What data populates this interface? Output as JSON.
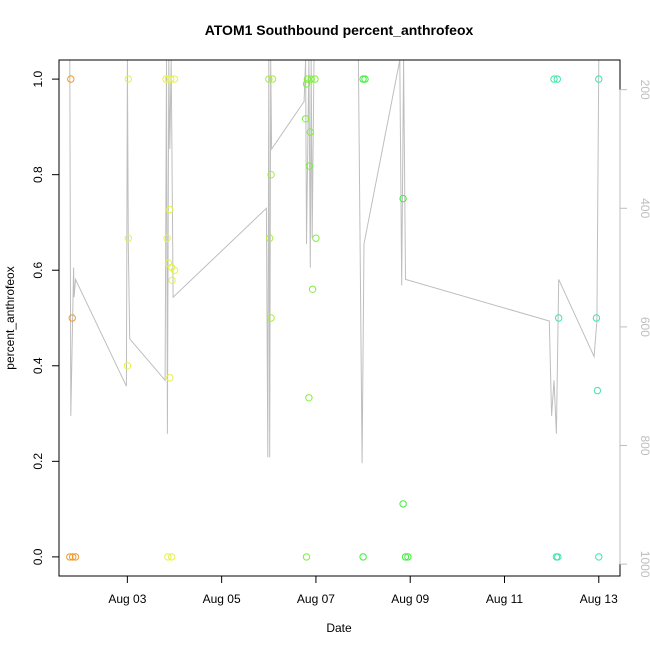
{
  "chart_data": {
    "type": "scatter",
    "title": "ATOM1 Southbound percent_anthrofeox",
    "xlabel": "Date",
    "ylabel": "percent_anthrofeox",
    "x_unit": "day (August)",
    "xlim": [
      1.55,
      13.45
    ],
    "ylim": [
      -0.04,
      1.04
    ],
    "x_ticks": [
      {
        "value": 3,
        "label": "Aug 03"
      },
      {
        "value": 5,
        "label": "Aug 05"
      },
      {
        "value": 7,
        "label": "Aug 07"
      },
      {
        "value": 9,
        "label": "Aug 09"
      },
      {
        "value": 11,
        "label": "Aug 11"
      },
      {
        "value": 13,
        "label": "Aug 13"
      }
    ],
    "y_ticks": [
      {
        "value": 0.0,
        "label": "0.0"
      },
      {
        "value": 0.2,
        "label": "0.2"
      },
      {
        "value": 0.4,
        "label": "0.4"
      },
      {
        "value": 0.6,
        "label": "0.6"
      },
      {
        "value": 0.8,
        "label": "0.8"
      },
      {
        "value": 1.0,
        "label": "1.0"
      }
    ],
    "right_axis": {
      "lim": [
        1020,
        150
      ],
      "color": "#bebebe",
      "ticks": [
        {
          "value": 200,
          "label": "200"
        },
        {
          "value": 400,
          "label": "400"
        },
        {
          "value": 600,
          "label": "600"
        },
        {
          "value": 800,
          "label": "800"
        },
        {
          "value": 1000,
          "label": "1000"
        }
      ]
    },
    "grid": false,
    "point_series": {
      "marker": "open-circle",
      "points": [
        {
          "x": 1.8,
          "y": 1.0,
          "color": "#ee9a2e"
        },
        {
          "x": 1.83,
          "y": 0.5,
          "color": "#ee9a2e"
        },
        {
          "x": 1.78,
          "y": 0.0,
          "color": "#ee9a2e"
        },
        {
          "x": 1.84,
          "y": 0.0,
          "color": "#ee9a2e"
        },
        {
          "x": 1.9,
          "y": 0.0,
          "color": "#ee9a2e"
        },
        {
          "x": 3.02,
          "y": 1.0,
          "color": "#e6f24a"
        },
        {
          "x": 3.02,
          "y": 0.667,
          "color": "#e6f24a"
        },
        {
          "x": 3.0,
          "y": 0.4,
          "color": "#e6f24a"
        },
        {
          "x": 3.82,
          "y": 1.0,
          "color": "#e6f24a"
        },
        {
          "x": 3.87,
          "y": 1.0,
          "color": "#e6f24a"
        },
        {
          "x": 3.92,
          "y": 1.0,
          "color": "#e6f24a"
        },
        {
          "x": 4.0,
          "y": 1.0,
          "color": "#e6f24a"
        },
        {
          "x": 3.9,
          "y": 0.727,
          "color": "#e6f24a"
        },
        {
          "x": 3.84,
          "y": 0.667,
          "color": "#e6f24a"
        },
        {
          "x": 3.87,
          "y": 0.615,
          "color": "#e6f24a"
        },
        {
          "x": 3.94,
          "y": 0.606,
          "color": "#e6f24a"
        },
        {
          "x": 4.0,
          "y": 0.6,
          "color": "#e6f24a"
        },
        {
          "x": 3.95,
          "y": 0.579,
          "color": "#e6f24a"
        },
        {
          "x": 3.9,
          "y": 0.375,
          "color": "#e6f24a"
        },
        {
          "x": 3.86,
          "y": 0.0,
          "color": "#e6f24a"
        },
        {
          "x": 3.94,
          "y": 0.0,
          "color": "#e6f24a"
        },
        {
          "x": 6.0,
          "y": 1.0,
          "color": "#a6ee3b"
        },
        {
          "x": 6.08,
          "y": 1.0,
          "color": "#a6ee3b"
        },
        {
          "x": 6.05,
          "y": 0.8,
          "color": "#a6ee3b"
        },
        {
          "x": 6.02,
          "y": 0.667,
          "color": "#a6ee3b"
        },
        {
          "x": 6.05,
          "y": 0.5,
          "color": "#a6ee3b"
        },
        {
          "x": 6.82,
          "y": 1.0,
          "color": "#7fee3b"
        },
        {
          "x": 6.9,
          "y": 1.0,
          "color": "#7fee3b"
        },
        {
          "x": 6.98,
          "y": 1.0,
          "color": "#7fee3b"
        },
        {
          "x": 6.8,
          "y": 0.99,
          "color": "#7fee3b"
        },
        {
          "x": 6.78,
          "y": 0.917,
          "color": "#7fee3b"
        },
        {
          "x": 6.88,
          "y": 0.889,
          "color": "#7fee3b"
        },
        {
          "x": 6.86,
          "y": 0.818,
          "color": "#7fee3b"
        },
        {
          "x": 7.0,
          "y": 0.667,
          "color": "#7fee3b"
        },
        {
          "x": 6.93,
          "y": 0.56,
          "color": "#7fee3b"
        },
        {
          "x": 6.85,
          "y": 0.333,
          "color": "#7fee3b"
        },
        {
          "x": 6.8,
          "y": 0.0,
          "color": "#7fee3b"
        },
        {
          "x": 8.0,
          "y": 1.0,
          "color": "#3fee3b"
        },
        {
          "x": 8.04,
          "y": 1.0,
          "color": "#3fee3b"
        },
        {
          "x": 8.0,
          "y": 0.0,
          "color": "#3fee3b"
        },
        {
          "x": 8.85,
          "y": 0.75,
          "color": "#3fee3b"
        },
        {
          "x": 8.85,
          "y": 0.111,
          "color": "#3fee3b"
        },
        {
          "x": 8.9,
          "y": 0.0,
          "color": "#3fee3b"
        },
        {
          "x": 8.95,
          "y": 0.0,
          "color": "#3fee3b"
        },
        {
          "x": 12.05,
          "y": 1.0,
          "color": "#3fe6a6"
        },
        {
          "x": 12.12,
          "y": 1.0,
          "color": "#3fe6a6"
        },
        {
          "x": 12.15,
          "y": 0.5,
          "color": "#3fe6a6"
        },
        {
          "x": 12.1,
          "y": 0.0,
          "color": "#3fe6a6"
        },
        {
          "x": 12.13,
          "y": 0.0,
          "color": "#3fe6a6"
        },
        {
          "x": 13.0,
          "y": 1.0,
          "color": "#3fe6a6"
        },
        {
          "x": 12.95,
          "y": 0.5,
          "color": "#3fe6a6"
        },
        {
          "x": 12.97,
          "y": 0.348,
          "color": "#3fe6a6"
        },
        {
          "x": 13.0,
          "y": 0.0,
          "color": "#3fe6a6"
        }
      ]
    },
    "line_series": {
      "axis": "right",
      "color": "#bebebe",
      "points": [
        [
          1.78,
          150
        ],
        [
          1.8,
          750
        ],
        [
          1.86,
          500
        ],
        [
          1.87,
          550
        ],
        [
          1.9,
          520
        ],
        [
          2.98,
          700
        ],
        [
          3.0,
          150
        ],
        [
          3.02,
          460
        ],
        [
          3.05,
          620
        ],
        [
          3.8,
          690
        ],
        [
          3.83,
          150
        ],
        [
          3.85,
          780
        ],
        [
          3.88,
          150
        ],
        [
          3.9,
          300
        ],
        [
          3.93,
          150
        ],
        [
          3.97,
          550
        ],
        [
          5.95,
          400
        ],
        [
          5.98,
          820
        ],
        [
          6.0,
          150
        ],
        [
          6.02,
          820
        ],
        [
          6.04,
          150
        ],
        [
          6.06,
          300
        ],
        [
          6.75,
          220
        ],
        [
          6.78,
          150
        ],
        [
          6.8,
          460
        ],
        [
          6.85,
          150
        ],
        [
          6.88,
          500
        ],
        [
          6.9,
          150
        ],
        [
          6.92,
          450
        ],
        [
          6.96,
          150
        ],
        [
          7.9,
          150
        ],
        [
          7.98,
          830
        ],
        [
          8.02,
          460
        ],
        [
          8.78,
          150
        ],
        [
          8.82,
          530
        ],
        [
          8.86,
          150
        ],
        [
          8.9,
          520
        ],
        [
          11.95,
          590
        ],
        [
          12.0,
          750
        ],
        [
          12.05,
          690
        ],
        [
          12.1,
          780
        ],
        [
          12.15,
          520
        ],
        [
          12.9,
          650
        ],
        [
          12.96,
          590
        ],
        [
          13.0,
          150
        ]
      ]
    }
  }
}
